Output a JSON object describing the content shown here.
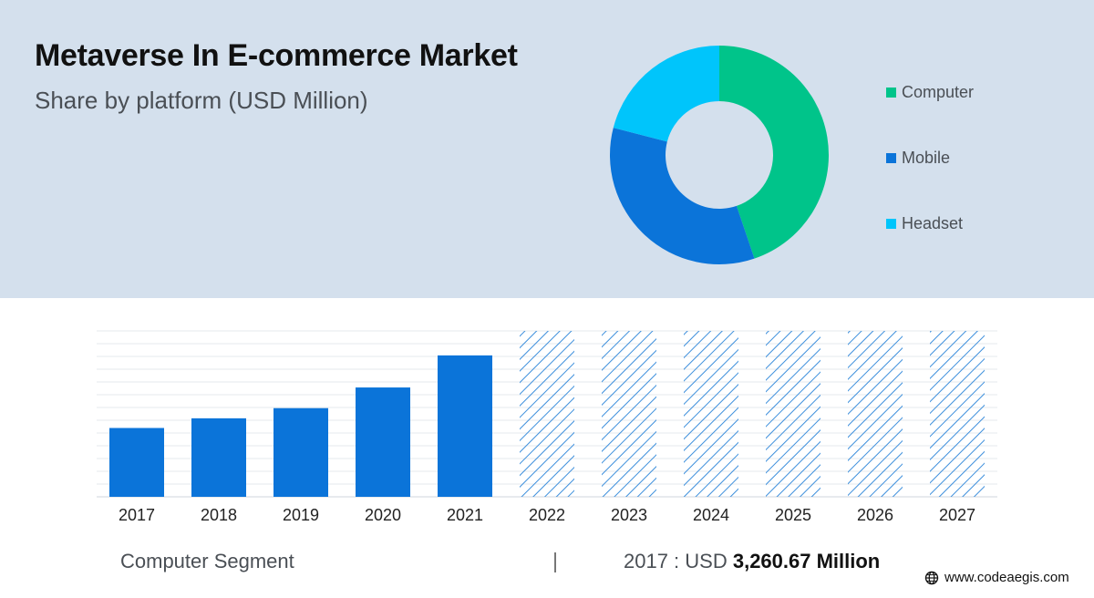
{
  "header": {
    "title": "Metaverse In E-commerce Market",
    "subtitle": "Share by platform (USD Million)"
  },
  "footer": {
    "segment_label": "Computer Segment",
    "stat_prefix": "2017 : USD ",
    "stat_value": "3,260.67 Million"
  },
  "source": {
    "icon": "globe-icon",
    "text": "www.codeaegis.com"
  },
  "colors": {
    "background_band": "#d4e0ed",
    "bar": "#0b74d9",
    "hatch": "#3d8fdc"
  },
  "chart_data": [
    {
      "type": "pie",
      "variant": "donut",
      "legend_position": "right",
      "labels": [
        "Computer",
        "Mobile",
        "Headset"
      ],
      "values": [
        44.8,
        34.2,
        21.0
      ],
      "colors": [
        "#00c48a",
        "#0b74d9",
        "#00c5fb"
      ]
    },
    {
      "type": "bar",
      "categories": [
        "2017",
        "2018",
        "2019",
        "2020",
        "2021",
        "2022",
        "2023",
        "2024",
        "2025",
        "2026",
        "2027"
      ],
      "values": [
        3260.67,
        3720,
        4200,
        5180,
        6700,
        7860,
        7860,
        7860,
        7860,
        7860,
        7860
      ],
      "forecast_from": "2022",
      "forecast_style": "hatched",
      "grid": true,
      "ylim": [
        0,
        7860
      ],
      "color": "#0b74d9"
    }
  ]
}
